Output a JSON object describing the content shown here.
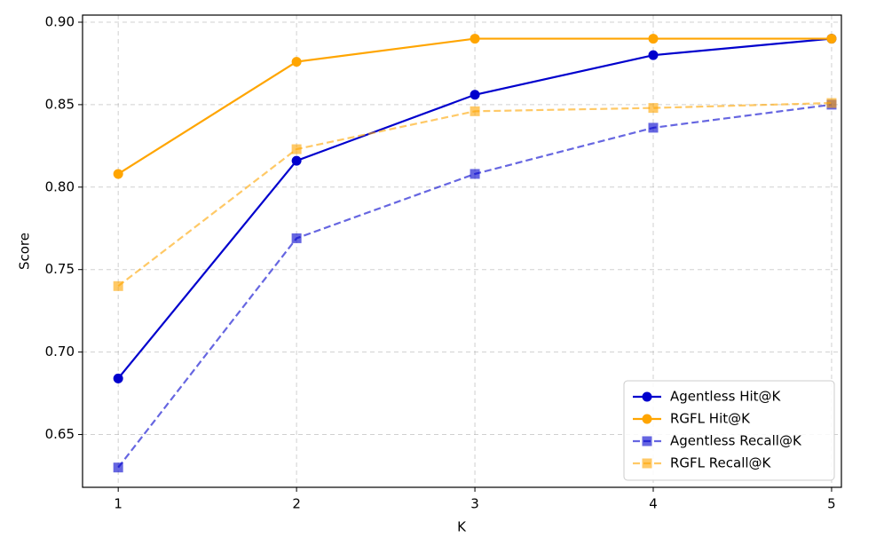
{
  "chart_data": {
    "type": "line",
    "x_label": "K",
    "y_label": "Score",
    "x": [
      1,
      2,
      3,
      4,
      5
    ],
    "series": [
      {
        "name": "Agentless Hit@K",
        "color": "#0000cd",
        "dash": false,
        "marker": "circle",
        "alpha": 1,
        "values": [
          0.684,
          0.816,
          0.856,
          0.88,
          0.89
        ]
      },
      {
        "name": "RGFL Hit@K",
        "color": "#ffa500",
        "dash": false,
        "marker": "circle",
        "alpha": 1,
        "values": [
          0.808,
          0.876,
          0.89,
          0.89,
          0.89
        ]
      },
      {
        "name": "Agentless Recall@K",
        "color": "#0000cd",
        "dash": true,
        "marker": "square",
        "alpha": 0.6,
        "values": [
          0.63,
          0.769,
          0.808,
          0.836,
          0.85
        ]
      },
      {
        "name": "RGFL Recall@K",
        "color": "#ffa500",
        "dash": true,
        "marker": "square",
        "alpha": 0.6,
        "values": [
          0.74,
          0.823,
          0.846,
          0.848,
          0.851
        ]
      }
    ],
    "xlim": [
      0.8,
      5.055
    ],
    "ylim": [
      0.618,
      0.9043
    ],
    "xticks": [
      1,
      2,
      3,
      4,
      5
    ],
    "yticks": [
      {
        "value": 0.65,
        "label": "0.65"
      },
      {
        "value": 0.7,
        "label": "0.70"
      },
      0.75,
      {
        "value": 0.8,
        "label": "0.80"
      },
      0.85,
      {
        "value": 0.9,
        "label": "0.90"
      }
    ],
    "grid": true,
    "legend": "lower right"
  }
}
